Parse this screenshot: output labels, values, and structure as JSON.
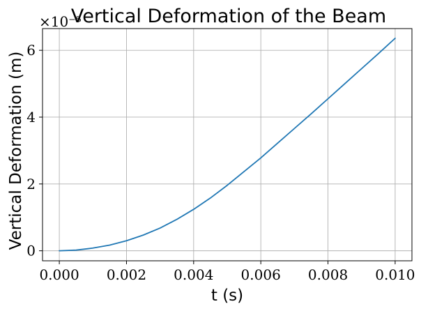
{
  "chart_data": {
    "type": "line",
    "title": "Vertical Deformation of the Beam",
    "xlabel": "t (s)",
    "ylabel": "Vertical Deformation (m)",
    "y_offset_text": "×10⁻⁵",
    "xlim": [
      -0.0005,
      0.0105
    ],
    "ylim": [
      -0.3,
      6.65
    ],
    "x_ticks": [
      0.0,
      0.002,
      0.004,
      0.006,
      0.008,
      0.01
    ],
    "x_tick_labels": [
      "0.000",
      "0.002",
      "0.004",
      "0.006",
      "0.008",
      "0.010"
    ],
    "y_ticks": [
      0,
      2,
      4,
      6
    ],
    "y_tick_labels": [
      "0",
      "2",
      "4",
      "6"
    ],
    "grid": true,
    "series": [
      {
        "color": "#1f77b4",
        "x": [
          0.0,
          0.0005,
          0.001,
          0.0015,
          0.002,
          0.0025,
          0.003,
          0.0035,
          0.004,
          0.0045,
          0.005,
          0.0055,
          0.006,
          0.0065,
          0.007,
          0.0075,
          0.008,
          0.0085,
          0.009,
          0.0095,
          0.01
        ],
        "y": [
          0.0,
          0.02,
          0.08,
          0.17,
          0.3,
          0.47,
          0.68,
          0.94,
          1.24,
          1.58,
          1.96,
          2.37,
          2.78,
          3.22,
          3.66,
          4.1,
          4.55,
          5.0,
          5.45,
          5.9,
          6.36
        ]
      }
    ]
  }
}
